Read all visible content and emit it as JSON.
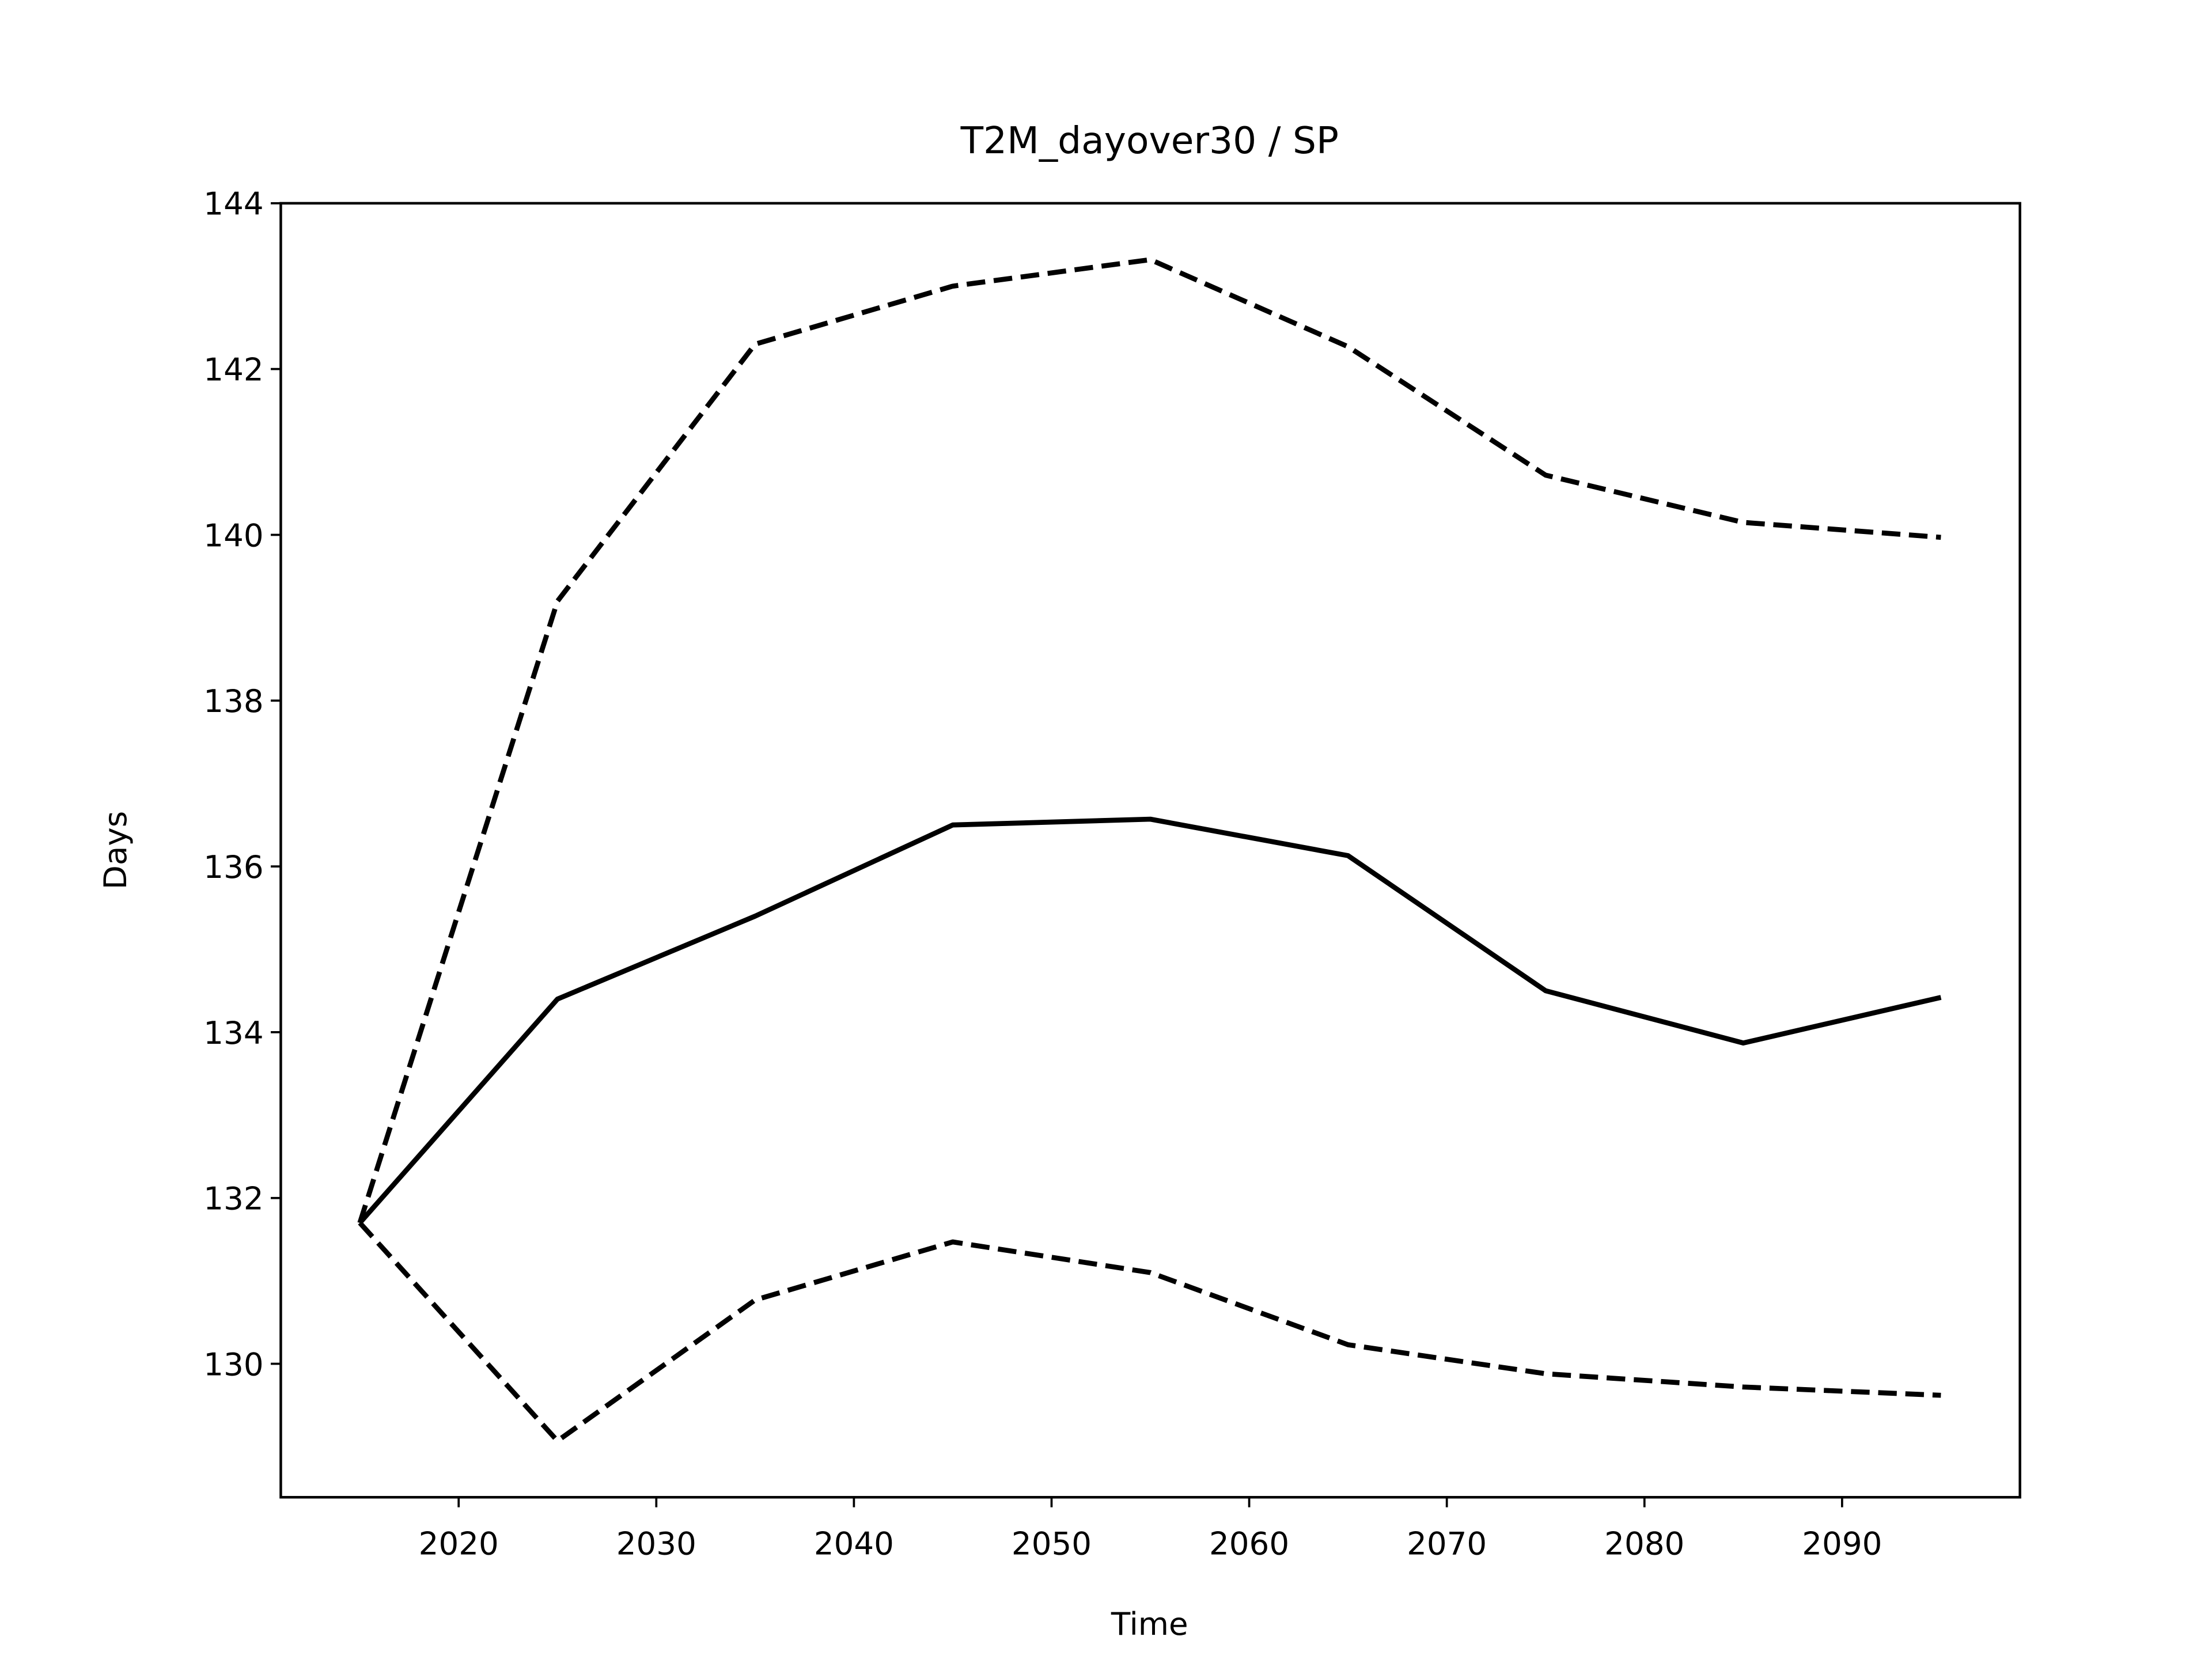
{
  "chart_data": {
    "type": "line",
    "title": "T2M_dayover30 / SP",
    "xlabel": "Time",
    "ylabel": "Days",
    "x": [
      2015,
      2025,
      2035,
      2045,
      2055,
      2065,
      2075,
      2085,
      2095
    ],
    "series": [
      {
        "color": "#000000",
        "dashed": false,
        "values": [
          131.7,
          134.4,
          135.4,
          136.5,
          136.57,
          136.13,
          134.5,
          133.87,
          134.42
        ]
      },
      {
        "color": "#000000",
        "dashed": true,
        "values": [
          131.7,
          139.2,
          142.3,
          143.0,
          143.32,
          142.27,
          140.72,
          140.15,
          139.97
        ]
      },
      {
        "color": "#000000",
        "dashed": true,
        "values": [
          131.7,
          129.07,
          130.77,
          131.47,
          131.1,
          130.23,
          129.88,
          129.72,
          129.62
        ]
      }
    ],
    "xlim": [
      2011,
      2099
    ],
    "xticks": [
      2020,
      2030,
      2040,
      2050,
      2060,
      2070,
      2080,
      2090
    ],
    "ylim": [
      128.39,
      144
    ],
    "yticks": [
      130,
      132,
      134,
      136,
      138,
      140,
      142,
      144
    ],
    "grid": false
  }
}
